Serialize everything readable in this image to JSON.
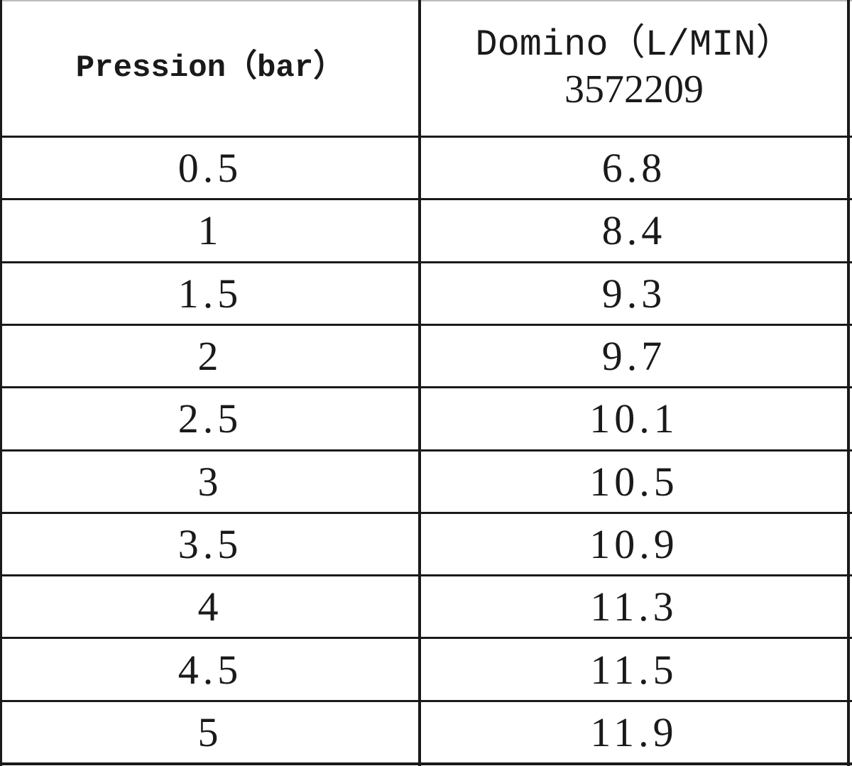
{
  "table": {
    "header": [
      "Pression（bar）",
      [
        "Domino（L/MIN）",
        "3572209"
      ]
    ],
    "rows": [
      [
        "0.5",
        "6.8"
      ],
      [
        "1",
        "8.4"
      ],
      [
        "1.5",
        "9.3"
      ],
      [
        "2",
        "9.7"
      ],
      [
        "2.5",
        "10.1"
      ],
      [
        "3",
        "10.5"
      ],
      [
        "3.5",
        "10.9"
      ],
      [
        "4",
        "11.3"
      ],
      [
        "4.5",
        "11.5"
      ],
      [
        "5",
        "11.9"
      ]
    ]
  }
}
